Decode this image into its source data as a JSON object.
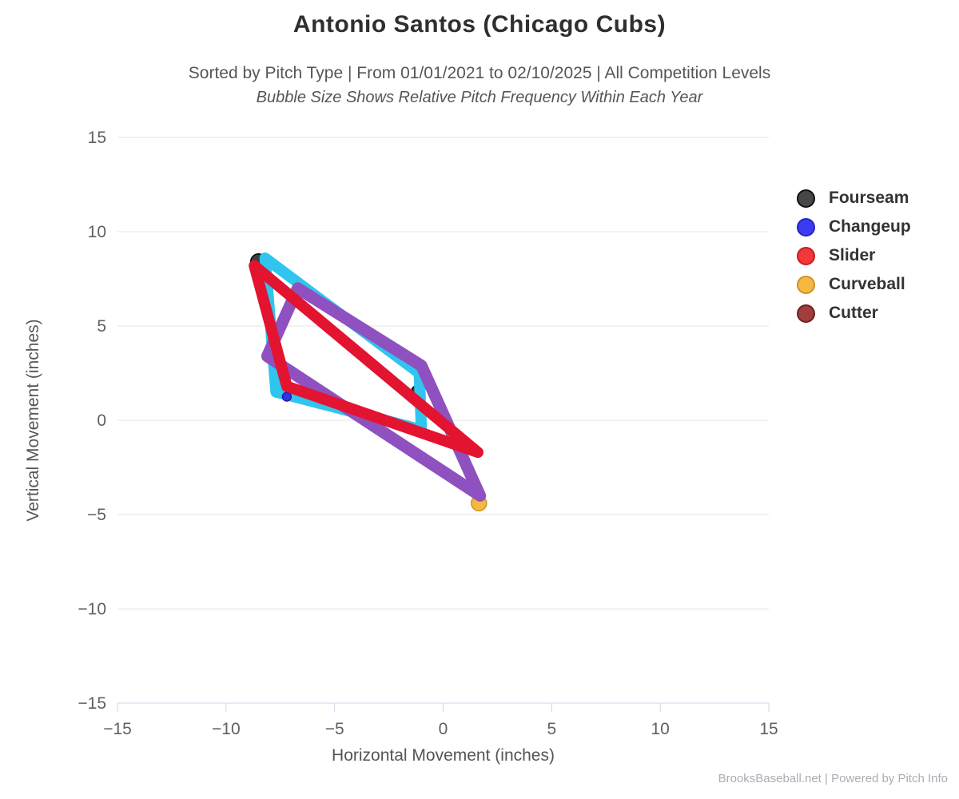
{
  "page": {
    "background": "#ffffff"
  },
  "chart_data": {
    "type": "line",
    "title": "Antonio Santos (Chicago Cubs)",
    "subtitle": "Sorted by Pitch Type | From 01/01/2021 to 02/10/2025 | All Competition Levels",
    "subtitle2": "Bubble Size Shows Relative Pitch Frequency Within Each Year",
    "xlabel": "Horizontal Movement (inches)",
    "ylabel": "Vertical Movement (inches)",
    "xlim": [
      -15,
      15
    ],
    "ylim": [
      -15,
      15
    ],
    "xticks": [
      {
        "v": -15,
        "label": "−15"
      },
      {
        "v": -10,
        "label": "−10"
      },
      {
        "v": -5,
        "label": "−5"
      },
      {
        "v": 0,
        "label": "0"
      },
      {
        "v": 5,
        "label": "5"
      },
      {
        "v": 10,
        "label": "10"
      },
      {
        "v": 15,
        "label": "15"
      }
    ],
    "yticks": [
      {
        "v": 15,
        "label": "15"
      },
      {
        "v": 10,
        "label": "10"
      },
      {
        "v": 5,
        "label": "5"
      },
      {
        "v": 0,
        "label": "0"
      },
      {
        "v": -5,
        "label": "−5"
      },
      {
        "v": -10,
        "label": "−10"
      },
      {
        "v": -15,
        "label": "−15"
      }
    ],
    "grid": {
      "horizontal": true,
      "vertical": false,
      "color": "#e6e6e6"
    },
    "axis_line_color": "#ccd6eb",
    "legend": {
      "position": "right",
      "entries": [
        {
          "label": "Fourseam",
          "fill": "#474747",
          "stroke": "#111111"
        },
        {
          "label": "Changeup",
          "fill": "#3b3bf2",
          "stroke": "#2323c8"
        },
        {
          "label": "Slider",
          "fill": "#f23838",
          "stroke": "#c41f1f"
        },
        {
          "label": "Curveball",
          "fill": "#f5b942",
          "stroke": "#cf921f"
        },
        {
          "label": "Cutter",
          "fill": "#a33c3c",
          "stroke": "#6b2323"
        }
      ]
    },
    "series_paths": [
      {
        "name": "movement-path-cyan",
        "color": "#2fc5ef",
        "width": 14,
        "closed": true,
        "z": 1,
        "points": [
          [
            -8.2,
            8.6
          ],
          [
            -1.1,
            2.5
          ],
          [
            -1.0,
            -0.5
          ],
          [
            -7.7,
            1.5
          ]
        ]
      },
      {
        "name": "movement-path-purple",
        "color": "#8f51c0",
        "width": 15,
        "closed": true,
        "z": 3,
        "points": [
          [
            -6.7,
            7.0
          ],
          [
            -1.0,
            2.9
          ],
          [
            1.7,
            -4.0
          ],
          [
            -8.1,
            3.4
          ]
        ]
      },
      {
        "name": "movement-path-red",
        "color": "#e31430",
        "width": 14,
        "closed": true,
        "z": 5,
        "points": [
          [
            -8.7,
            8.2
          ],
          [
            1.6,
            -1.7
          ],
          [
            -7.2,
            1.8
          ]
        ]
      }
    ],
    "bubbles": [
      {
        "pitch": "Fourseam",
        "x": -8.5,
        "y": 8.4,
        "r": 10,
        "fill": "#3f3f3f",
        "stroke": "#000000",
        "z": 0
      },
      {
        "pitch": "Fourseam",
        "x": -1.25,
        "y": 1.6,
        "r": 5,
        "fill": "#3f3f3f",
        "stroke": "#000000",
        "z": 0
      },
      {
        "pitch": "Curveball",
        "x": 1.65,
        "y": -4.4,
        "r": 9.5,
        "fill": "#f5b942",
        "stroke": "#cf921f",
        "z": 2
      },
      {
        "pitch": "Changeup",
        "x": -7.2,
        "y": 1.25,
        "r": 5.5,
        "fill": "#3232e0",
        "stroke": "#1d1db4",
        "z": 4
      }
    ]
  },
  "footer": {
    "credit": "BrooksBaseball.net | Powered by Pitch Info"
  }
}
